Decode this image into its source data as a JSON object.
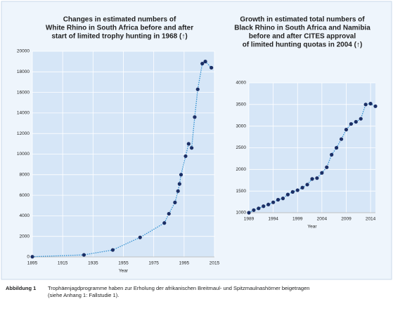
{
  "chart_data": [
    {
      "type": "line",
      "title": [
        "Changes in estimated numbers of",
        "White Rhino in South Africa before and after",
        "start of limited trophy hunting in 1968 (↑)"
      ],
      "x_label": "Year",
      "x": [
        1895,
        1929,
        1948,
        1966,
        1982,
        1985,
        1989,
        1991,
        1992,
        1993,
        1996,
        1998,
        2000,
        2002,
        2004,
        2007,
        2009,
        2013
      ],
      "series": [
        {
          "color": "#1b2f66",
          "values": [
            20,
            200,
            680,
            1900,
            3300,
            4200,
            5300,
            6400,
            7100,
            8000,
            9800,
            11000,
            10600,
            13600,
            16300,
            18800,
            19000,
            18400
          ]
        }
      ],
      "line_color": "#2f8fd0",
      "xlim": [
        1895,
        2015
      ],
      "xticks": [
        1895,
        1915,
        1935,
        1955,
        1975,
        1995,
        2015
      ],
      "ylim": [
        0,
        20000
      ],
      "yticks": [
        0,
        2000,
        4000,
        6000,
        8000,
        10000,
        12000,
        14000,
        16000,
        18000,
        20000
      ],
      "grid": true
    },
    {
      "type": "line",
      "title": [
        "Growth in estimated total numbers of",
        "Black Rhino in South Africa and Namibia",
        "before and after CITES approval",
        "of limited hunting quotas in 2004 (↑)"
      ],
      "x_label": "Year",
      "x": [
        1989,
        1990,
        1991,
        1992,
        1993,
        1994,
        1995,
        1996,
        1997,
        1998,
        1999,
        2000,
        2001,
        2002,
        2003,
        2004,
        2005,
        2006,
        2007,
        2008,
        2009,
        2010,
        2011,
        2012,
        2013,
        2014,
        2015
      ],
      "series": [
        {
          "color": "#1b2f66",
          "values": [
            1000,
            1060,
            1100,
            1150,
            1190,
            1240,
            1300,
            1330,
            1420,
            1480,
            1520,
            1580,
            1650,
            1780,
            1800,
            1920,
            2050,
            2340,
            2500,
            2700,
            2920,
            3050,
            3100,
            3170,
            3500,
            3520,
            3460
          ]
        }
      ],
      "line_color": "#2f8fd0",
      "xlim": [
        1989,
        2015
      ],
      "xticks": [
        1989,
        1994,
        1999,
        2004,
        2009,
        2014
      ],
      "ylim": [
        1000,
        4000
      ],
      "yticks": [
        1000,
        1500,
        2000,
        2500,
        3000,
        3500,
        4000
      ],
      "grid": true
    }
  ],
  "caption": {
    "label": "Abbildung 1",
    "lines": [
      "Trophäenjagdprogramme haben zur Erholung der afrikanischen Breitmaul- und Spitzmaulnashörner beigetragen",
      "(siehe Anhang 1: Fallstudie 1)."
    ]
  }
}
